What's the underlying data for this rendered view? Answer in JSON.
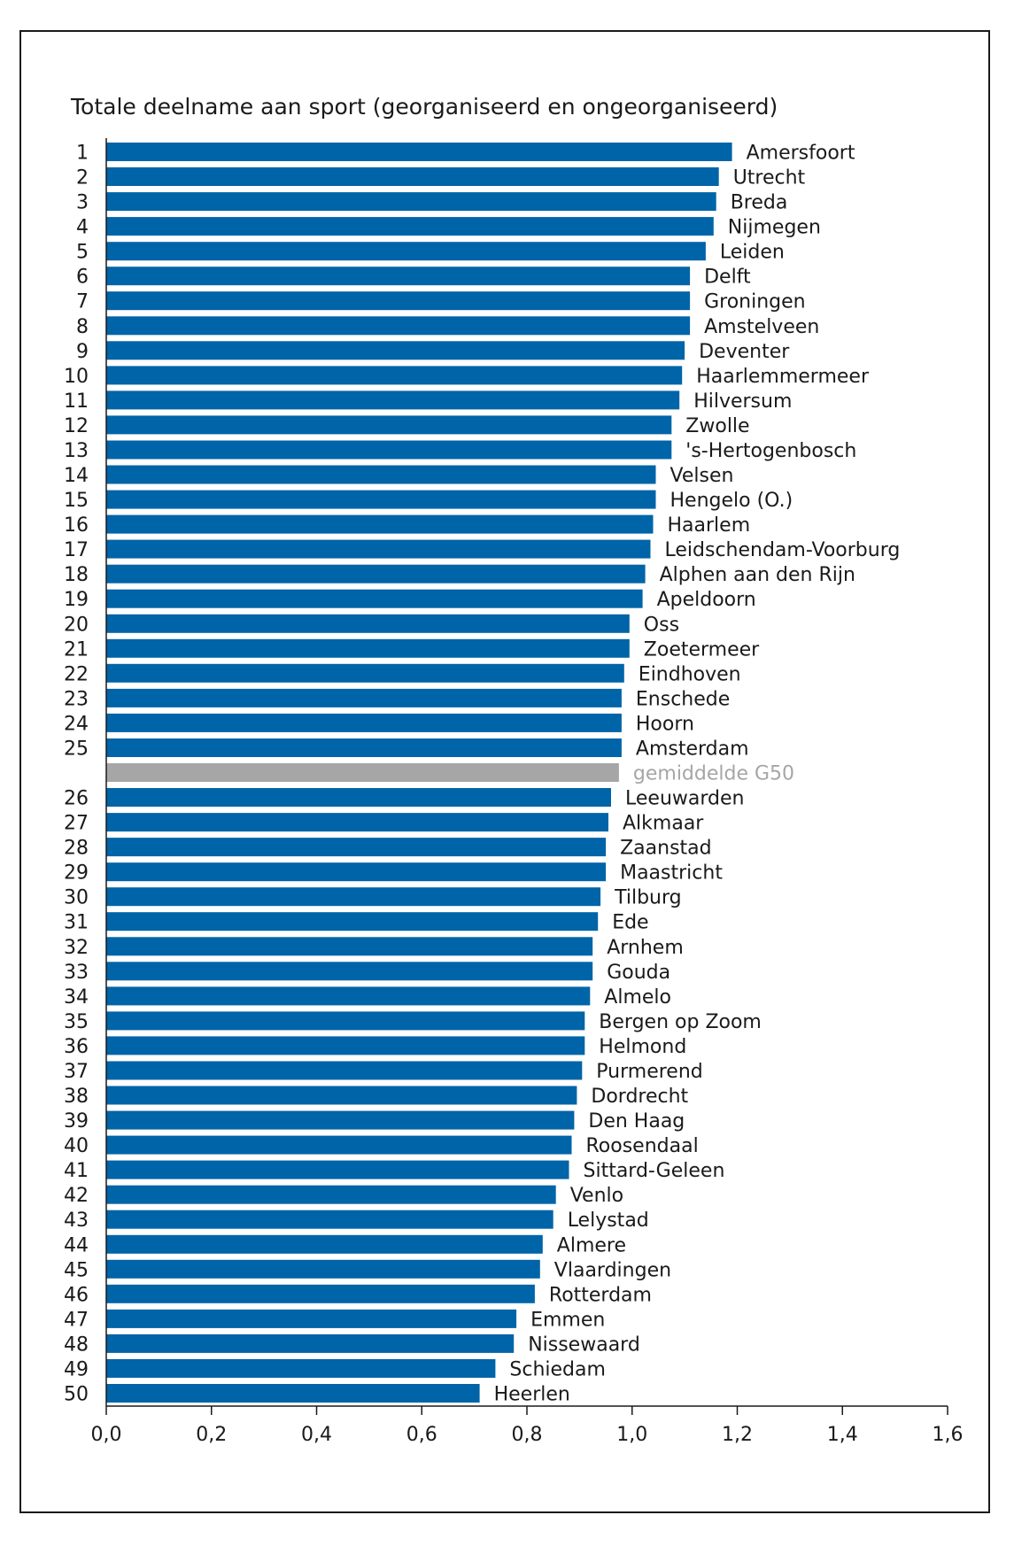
{
  "chart_data": {
    "type": "bar",
    "orientation": "horizontal",
    "title": "Totale deelname aan sport (georganiseerd en ongeorganiseerd)",
    "xlim": [
      0,
      1.6
    ],
    "xticks": [
      "0,0",
      "0,2",
      "0,4",
      "0,6",
      "0,8",
      "1,0",
      "1,2",
      "1,4",
      "1,6"
    ],
    "bar_color": "#0064a8",
    "average_color": "#a6a6a6",
    "bars": [
      {
        "rank": "1",
        "label": "Amersfoort",
        "value": 1.19
      },
      {
        "rank": "2",
        "label": "Utrecht",
        "value": 1.165
      },
      {
        "rank": "3",
        "label": "Breda",
        "value": 1.16
      },
      {
        "rank": "4",
        "label": "Nijmegen",
        "value": 1.155
      },
      {
        "rank": "5",
        "label": "Leiden",
        "value": 1.14
      },
      {
        "rank": "6",
        "label": "Delft",
        "value": 1.11
      },
      {
        "rank": "7",
        "label": "Groningen",
        "value": 1.11
      },
      {
        "rank": "8",
        "label": "Amstelveen",
        "value": 1.11
      },
      {
        "rank": "9",
        "label": "Deventer",
        "value": 1.1
      },
      {
        "rank": "10",
        "label": "Haarlemmermeer",
        "value": 1.095
      },
      {
        "rank": "11",
        "label": "Hilversum",
        "value": 1.09
      },
      {
        "rank": "12",
        "label": "Zwolle",
        "value": 1.075
      },
      {
        "rank": "13",
        "label": "'s-Hertogenbosch",
        "value": 1.075
      },
      {
        "rank": "14",
        "label": "Velsen",
        "value": 1.045
      },
      {
        "rank": "15",
        "label": "Hengelo (O.)",
        "value": 1.045
      },
      {
        "rank": "16",
        "label": "Haarlem",
        "value": 1.04
      },
      {
        "rank": "17",
        "label": "Leidschendam-Voorburg",
        "value": 1.035
      },
      {
        "rank": "18",
        "label": "Alphen aan den Rijn",
        "value": 1.025
      },
      {
        "rank": "19",
        "label": "Apeldoorn",
        "value": 1.02
      },
      {
        "rank": "20",
        "label": "Oss",
        "value": 0.995
      },
      {
        "rank": "21",
        "label": "Zoetermeer",
        "value": 0.995
      },
      {
        "rank": "22",
        "label": "Eindhoven",
        "value": 0.985
      },
      {
        "rank": "23",
        "label": "Enschede",
        "value": 0.98
      },
      {
        "rank": "24",
        "label": "Hoorn",
        "value": 0.98
      },
      {
        "rank": "25",
        "label": "Amsterdam",
        "value": 0.98
      },
      {
        "rank": "",
        "label": "gemiddelde G50",
        "value": 0.975,
        "average": true
      },
      {
        "rank": "26",
        "label": "Leeuwarden",
        "value": 0.96
      },
      {
        "rank": "27",
        "label": "Alkmaar",
        "value": 0.955
      },
      {
        "rank": "28",
        "label": "Zaanstad",
        "value": 0.95
      },
      {
        "rank": "29",
        "label": "Maastricht",
        "value": 0.95
      },
      {
        "rank": "30",
        "label": "Tilburg",
        "value": 0.94
      },
      {
        "rank": "31",
        "label": "Ede",
        "value": 0.935
      },
      {
        "rank": "32",
        "label": "Arnhem",
        "value": 0.925
      },
      {
        "rank": "33",
        "label": "Gouda",
        "value": 0.925
      },
      {
        "rank": "34",
        "label": "Almelo",
        "value": 0.92
      },
      {
        "rank": "35",
        "label": "Bergen op Zoom",
        "value": 0.91
      },
      {
        "rank": "36",
        "label": "Helmond",
        "value": 0.91
      },
      {
        "rank": "37",
        "label": "Purmerend",
        "value": 0.905
      },
      {
        "rank": "38",
        "label": "Dordrecht",
        "value": 0.895
      },
      {
        "rank": "39",
        "label": "Den Haag",
        "value": 0.89
      },
      {
        "rank": "40",
        "label": "Roosendaal",
        "value": 0.885
      },
      {
        "rank": "41",
        "label": "Sittard-Geleen",
        "value": 0.88
      },
      {
        "rank": "42",
        "label": "Venlo",
        "value": 0.855
      },
      {
        "rank": "43",
        "label": "Lelystad",
        "value": 0.85
      },
      {
        "rank": "44",
        "label": "Almere",
        "value": 0.83
      },
      {
        "rank": "45",
        "label": "Vlaardingen",
        "value": 0.825
      },
      {
        "rank": "46",
        "label": "Rotterdam",
        "value": 0.815
      },
      {
        "rank": "47",
        "label": "Emmen",
        "value": 0.78
      },
      {
        "rank": "48",
        "label": "Nissewaard",
        "value": 0.775
      },
      {
        "rank": "49",
        "label": "Schiedam",
        "value": 0.74
      },
      {
        "rank": "50",
        "label": "Heerlen",
        "value": 0.71
      }
    ]
  }
}
